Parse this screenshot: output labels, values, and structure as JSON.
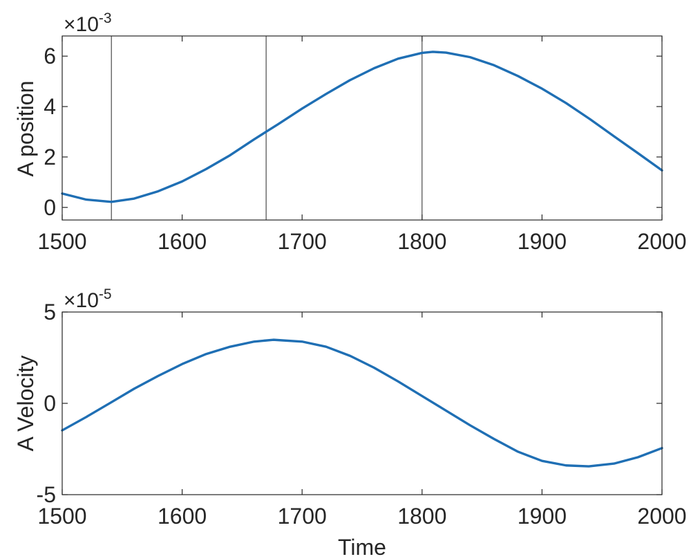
{
  "chart_data": [
    {
      "type": "line",
      "title": "",
      "xlabel": "",
      "ylabel": "A position",
      "exponent_label": "×10",
      "exponent_power": "-3",
      "xlim": [
        1500,
        2000
      ],
      "ylim": [
        -0.0005,
        0.0068
      ],
      "xticks": [
        1500,
        1600,
        1700,
        1800,
        1900,
        2000
      ],
      "xtick_labels": [
        "1500",
        "1600",
        "1700",
        "1800",
        "1900",
        "2000"
      ],
      "yticks": [
        0,
        0.002,
        0.004,
        0.006
      ],
      "ytick_labels": [
        "0",
        "2",
        "4",
        "6"
      ],
      "vertical_lines": [
        1541,
        1670,
        1800
      ],
      "series": [
        {
          "color": "#1f6fb4",
          "x": [
            1500,
            1520,
            1541,
            1560,
            1580,
            1600,
            1620,
            1640,
            1660,
            1670,
            1680,
            1700,
            1720,
            1740,
            1760,
            1780,
            1800,
            1809,
            1820,
            1840,
            1860,
            1880,
            1900,
            1920,
            1940,
            1960,
            1980,
            2000
          ],
          "y": [
            0.00055,
            0.00031,
            0.00022,
            0.00035,
            0.00064,
            0.00103,
            0.00152,
            0.00207,
            0.0027,
            0.003,
            0.0033,
            0.00392,
            0.0045,
            0.00505,
            0.00552,
            0.0059,
            0.00613,
            0.00617,
            0.00614,
            0.00596,
            0.00564,
            0.00521,
            0.00471,
            0.00414,
            0.0035,
            0.00282,
            0.00215,
            0.00147
          ]
        }
      ]
    },
    {
      "type": "line",
      "title": "",
      "xlabel": "Time",
      "ylabel": "A Velocity",
      "exponent_label": "×10",
      "exponent_power": "-5",
      "xlim": [
        1500,
        2000
      ],
      "ylim": [
        -5e-05,
        5e-05
      ],
      "xticks": [
        1500,
        1600,
        1700,
        1800,
        1900,
        2000
      ],
      "xtick_labels": [
        "1500",
        "1600",
        "1700",
        "1800",
        "1900",
        "2000"
      ],
      "yticks": [
        -5e-05,
        0,
        5e-05
      ],
      "ytick_labels": [
        "-5",
        "0",
        "5"
      ],
      "series": [
        {
          "color": "#1f6fb4",
          "x": [
            1500,
            1520,
            1540,
            1560,
            1580,
            1600,
            1620,
            1640,
            1660,
            1676,
            1700,
            1720,
            1740,
            1760,
            1780,
            1800,
            1820,
            1840,
            1860,
            1880,
            1900,
            1920,
            1939,
            1960,
            1980,
            2000
          ],
          "y": [
            -1.48e-05,
            -7.5e-06,
            2e-07,
            8e-06,
            1.5e-05,
            2.15e-05,
            2.7e-05,
            3.1e-05,
            3.38e-05,
            3.48e-05,
            3.38e-05,
            3.1e-05,
            2.6e-05,
            1.95e-05,
            1.2e-05,
            4e-06,
            -4e-06,
            -1.2e-05,
            -1.95e-05,
            -2.65e-05,
            -3.15e-05,
            -3.4e-05,
            -3.45e-05,
            -3.3e-05,
            -2.95e-05,
            -2.45e-05
          ]
        }
      ]
    }
  ]
}
